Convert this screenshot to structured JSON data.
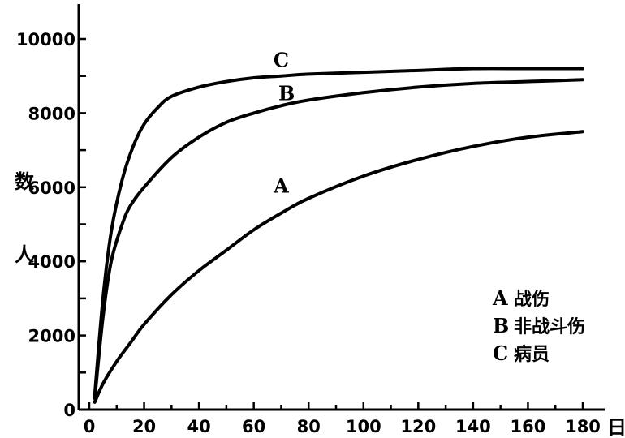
{
  "chart_data": {
    "type": "line",
    "xlabel": "日",
    "ylabel": "人数",
    "xlim": [
      0,
      180
    ],
    "ylim": [
      0,
      10000
    ],
    "xticks": [
      0,
      20,
      40,
      60,
      80,
      100,
      120,
      140,
      160,
      180
    ],
    "yticks": [
      0,
      2000,
      4000,
      6000,
      8000,
      10000
    ],
    "grid": false,
    "legend": [
      {
        "key": "A",
        "text": "战伤"
      },
      {
        "key": "B",
        "text": "非战斗伤"
      },
      {
        "key": "C",
        "text": "病员"
      }
    ],
    "legend_position": "bottom-right",
    "series": [
      {
        "name": "A",
        "x": [
          2,
          5,
          10,
          15,
          20,
          30,
          40,
          50,
          60,
          70,
          80,
          100,
          120,
          140,
          160,
          180
        ],
        "y": [
          200,
          700,
          1300,
          1800,
          2300,
          3100,
          3750,
          4300,
          4850,
          5300,
          5700,
          6300,
          6750,
          7100,
          7350,
          7500
        ]
      },
      {
        "name": "B",
        "x": [
          2,
          5,
          8,
          12,
          15,
          20,
          30,
          40,
          50,
          60,
          70,
          80,
          100,
          120,
          140,
          160,
          180
        ],
        "y": [
          300,
          2500,
          4000,
          5000,
          5500,
          6000,
          6800,
          7350,
          7750,
          8000,
          8200,
          8350,
          8550,
          8700,
          8800,
          8850,
          8900
        ]
      },
      {
        "name": "C",
        "x": [
          2,
          5,
          8,
          12,
          16,
          20,
          25,
          30,
          40,
          50,
          60,
          70,
          80,
          100,
          120,
          140,
          160,
          180
        ],
        "y": [
          400,
          3000,
          4800,
          6200,
          7100,
          7700,
          8150,
          8450,
          8700,
          8850,
          8950,
          9000,
          9050,
          9100,
          9150,
          9200,
          9200,
          9200
        ]
      }
    ],
    "series_labels": [
      {
        "name": "C",
        "x": 70,
        "y": 9250
      },
      {
        "name": "B",
        "x": 72,
        "y": 8350
      },
      {
        "name": "A",
        "x": 70,
        "y": 5850
      }
    ]
  }
}
